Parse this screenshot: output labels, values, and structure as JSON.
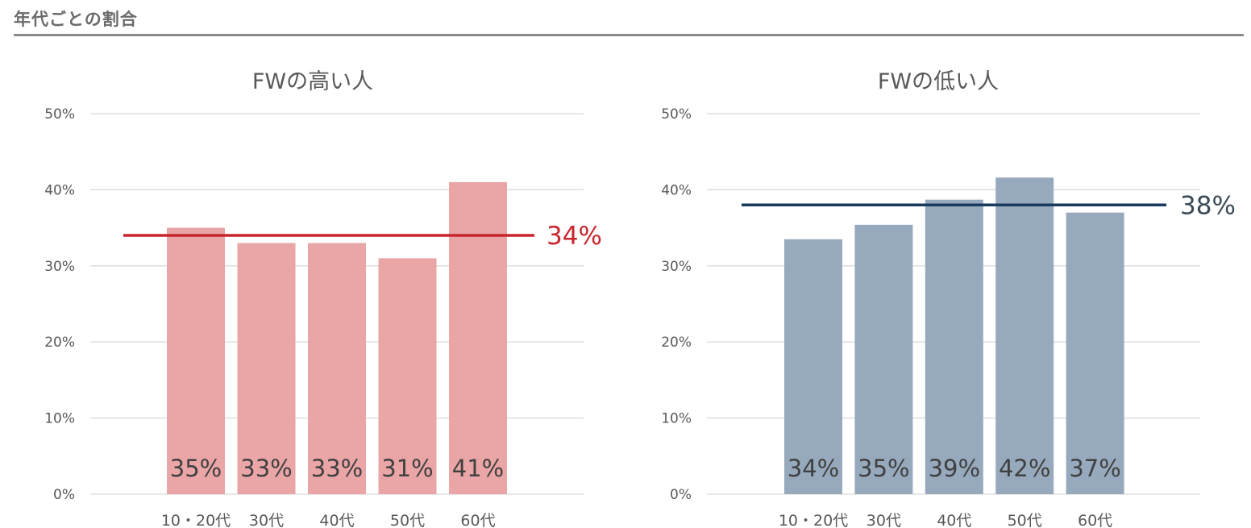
{
  "header": {
    "title": "年代ごとの割合"
  },
  "chart_data": [
    {
      "type": "bar",
      "title": "FWの高い人",
      "categories": [
        "10・20代",
        "30代",
        "40代",
        "50代",
        "60代"
      ],
      "values": [
        35,
        33,
        33,
        31,
        41
      ],
      "value_labels": [
        "35%",
        "33%",
        "33%",
        "31%",
        "41%"
      ],
      "yticks": [
        "0%",
        "10%",
        "20%",
        "30%",
        "40%",
        "50%"
      ],
      "ylim": [
        0,
        50
      ],
      "average": 34,
      "average_label": "34%",
      "bar_color": "#eaa5a6",
      "line_color": "#c8262e",
      "grid": true
    },
    {
      "type": "bar",
      "title": "FWの低い人",
      "categories": [
        "10・20代",
        "30代",
        "40代",
        "50代",
        "60代"
      ],
      "values": [
        33.5,
        35.4,
        38.7,
        41.6,
        37
      ],
      "value_labels": [
        "34%",
        "35%",
        "39%",
        "42%",
        "37%"
      ],
      "yticks": [
        "0%",
        "10%",
        "20%",
        "30%",
        "40%",
        "50%"
      ],
      "ylim": [
        0,
        50
      ],
      "average": 38,
      "average_label": "38%",
      "bar_color": "#97aabd",
      "line_color": "#173a5e",
      "grid": true
    }
  ]
}
